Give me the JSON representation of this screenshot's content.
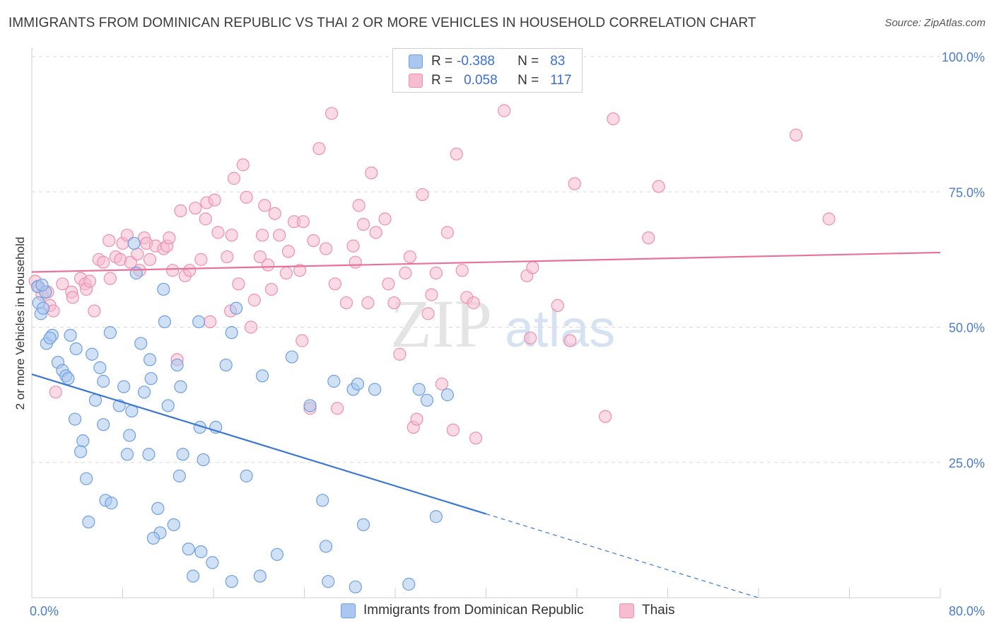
{
  "header": {
    "title": "IMMIGRANTS FROM DOMINICAN REPUBLIC VS THAI 2 OR MORE VEHICLES IN HOUSEHOLD CORRELATION CHART",
    "source": "Source: ZipAtlas.com"
  },
  "watermark": {
    "zip": "ZIP",
    "atlas": "atlas"
  },
  "legend": {
    "rows": [
      {
        "r_label": "R =",
        "r_value": "-0.388",
        "n_label": "N =",
        "n_value": "83"
      },
      {
        "r_label": "R =",
        "r_value": "0.058",
        "n_label": "N =",
        "n_value": "117"
      }
    ]
  },
  "colors": {
    "blue_fill": "#aac8ef",
    "blue_stroke": "#6f9fe0",
    "blue_line": "#3a78d4",
    "pink_fill": "#f6bcd0",
    "pink_stroke": "#ee8fb0",
    "pink_line": "#e8719c",
    "tick": "#4a7cc9",
    "grid": "#d9d9d9"
  },
  "chart_data": {
    "type": "scatter",
    "ylabel": "2 or more Vehicles in Household",
    "xlabel": "",
    "xlim": [
      0,
      80
    ],
    "ylim": [
      0,
      100
    ],
    "x_tick_labels": [
      {
        "value": 0,
        "label": "0.0%"
      },
      {
        "value": 80,
        "label": "80.0%"
      }
    ],
    "y_tick_labels": [
      {
        "value": 100,
        "label": "100.0%"
      },
      {
        "value": 75,
        "label": "75.0%"
      },
      {
        "value": 50,
        "label": "50.0%"
      },
      {
        "value": 25,
        "label": "25.0%"
      }
    ],
    "grid": true,
    "legend_position": "top-center",
    "series": [
      {
        "name": "Immigrants from Dominican Republic",
        "color": "#aac8ef",
        "trend": {
          "x": [
            0,
            40
          ],
          "y": [
            41.3,
            15.5
          ],
          "dashed_to": [
            64,
            0
          ]
        },
        "points": [
          [
            0.5,
            57.5
          ],
          [
            0.6,
            54.5
          ],
          [
            0.8,
            52.5
          ],
          [
            1.0,
            53.5
          ],
          [
            1.3,
            47
          ],
          [
            1.8,
            48.5
          ],
          [
            1.6,
            48
          ],
          [
            3.4,
            48.5
          ],
          [
            2.3,
            43.5
          ],
          [
            2.7,
            42
          ],
          [
            3.0,
            41
          ],
          [
            3.2,
            40.5
          ],
          [
            3.9,
            46
          ],
          [
            5.3,
            45
          ],
          [
            6.0,
            42.5
          ],
          [
            6.9,
            49
          ],
          [
            6.3,
            40
          ],
          [
            8.1,
            39
          ],
          [
            5.6,
            36.5
          ],
          [
            7.7,
            35.5
          ],
          [
            10.4,
            44
          ],
          [
            9.6,
            47
          ],
          [
            10.5,
            40.5
          ],
          [
            11.7,
            51
          ],
          [
            11.6,
            57
          ],
          [
            9.2,
            60
          ],
          [
            9.0,
            65.5
          ],
          [
            8.8,
            34.5
          ],
          [
            9.9,
            38
          ],
          [
            12.0,
            35.5
          ],
          [
            12.8,
            43
          ],
          [
            13.1,
            39
          ],
          [
            14.7,
            51
          ],
          [
            14.8,
            31.5
          ],
          [
            16.2,
            31.5
          ],
          [
            17.6,
            49
          ],
          [
            17.1,
            43
          ],
          [
            18.0,
            53.5
          ],
          [
            20.3,
            41
          ],
          [
            22.9,
            44.5
          ],
          [
            24.5,
            35.5
          ],
          [
            26.6,
            40
          ],
          [
            28.3,
            38.5
          ],
          [
            28.7,
            39.5
          ],
          [
            30.2,
            38.5
          ],
          [
            34.1,
            38.5
          ],
          [
            34.8,
            36.5
          ],
          [
            36.6,
            37.5
          ],
          [
            3.8,
            33
          ],
          [
            4.5,
            29
          ],
          [
            4.3,
            27
          ],
          [
            4.8,
            22
          ],
          [
            6.3,
            32
          ],
          [
            6.5,
            18
          ],
          [
            7.0,
            17.5
          ],
          [
            5.0,
            14
          ],
          [
            8.6,
            30
          ],
          [
            8.4,
            26.5
          ],
          [
            10.3,
            26.5
          ],
          [
            11.1,
            16.5
          ],
          [
            13.0,
            22.5
          ],
          [
            13.3,
            26.5
          ],
          [
            15.1,
            25.5
          ],
          [
            12.5,
            13.5
          ],
          [
            11.3,
            12
          ],
          [
            10.7,
            11
          ],
          [
            13.8,
            9
          ],
          [
            14.9,
            8.5
          ],
          [
            15.9,
            6.5
          ],
          [
            14.2,
            4
          ],
          [
            17.6,
            3
          ],
          [
            20.1,
            4
          ],
          [
            21.6,
            8
          ],
          [
            18.9,
            22.5
          ],
          [
            25.6,
            18
          ],
          [
            25.9,
            9.5
          ],
          [
            26.1,
            3
          ],
          [
            28.5,
            2
          ],
          [
            29.2,
            13.5
          ],
          [
            33.2,
            2.5
          ],
          [
            35.6,
            15
          ],
          [
            1.2,
            56.5
          ],
          [
            0.9,
            57.8
          ]
        ]
      },
      {
        "name": "Thais",
        "color": "#f6bcd0",
        "trend": {
          "x": [
            0,
            80
          ],
          "y": [
            60.2,
            63.8
          ]
        },
        "points": [
          [
            0.3,
            58.5
          ],
          [
            0.6,
            57.5
          ],
          [
            0.9,
            56
          ],
          [
            1.4,
            56.5
          ],
          [
            1.6,
            54
          ],
          [
            1.9,
            53
          ],
          [
            2.7,
            58
          ],
          [
            3.5,
            56.5
          ],
          [
            3.6,
            55.5
          ],
          [
            4.3,
            59
          ],
          [
            4.7,
            58
          ],
          [
            4.8,
            57
          ],
          [
            5.1,
            58.5
          ],
          [
            5.5,
            53
          ],
          [
            5.9,
            62.5
          ],
          [
            6.3,
            62
          ],
          [
            6.8,
            66
          ],
          [
            6.9,
            59
          ],
          [
            7.4,
            63
          ],
          [
            7.8,
            62.5
          ],
          [
            8.0,
            65.5
          ],
          [
            8.4,
            67
          ],
          [
            8.7,
            62
          ],
          [
            9.3,
            63.5
          ],
          [
            9.5,
            60.5
          ],
          [
            9.9,
            66.5
          ],
          [
            10.1,
            65.5
          ],
          [
            10.4,
            62.5
          ],
          [
            10.9,
            65
          ],
          [
            11.6,
            64.5
          ],
          [
            11.9,
            65
          ],
          [
            12.1,
            66.5
          ],
          [
            12.4,
            60.5
          ],
          [
            12.8,
            44
          ],
          [
            13.1,
            71.5
          ],
          [
            13.5,
            59.5
          ],
          [
            13.9,
            60.5
          ],
          [
            14.4,
            72
          ],
          [
            14.9,
            62.5
          ],
          [
            15.3,
            70
          ],
          [
            15.7,
            51
          ],
          [
            15.4,
            73
          ],
          [
            16.1,
            73.5
          ],
          [
            16.4,
            67.5
          ],
          [
            17.2,
            63
          ],
          [
            17.6,
            67
          ],
          [
            17.8,
            77.5
          ],
          [
            18.2,
            58
          ],
          [
            18.6,
            80
          ],
          [
            18.9,
            74
          ],
          [
            19.3,
            50
          ],
          [
            19.6,
            55
          ],
          [
            20.1,
            63
          ],
          [
            20.3,
            67
          ],
          [
            20.5,
            72.5
          ],
          [
            20.8,
            61.5
          ],
          [
            21.1,
            57
          ],
          [
            21.4,
            71
          ],
          [
            21.8,
            67
          ],
          [
            22.4,
            60
          ],
          [
            22.6,
            64
          ],
          [
            23.1,
            69.5
          ],
          [
            23.6,
            60.5
          ],
          [
            23.8,
            47.5
          ],
          [
            23.9,
            69.5
          ],
          [
            24.5,
            35
          ],
          [
            24.8,
            66
          ],
          [
            25.3,
            83
          ],
          [
            25.9,
            64.5
          ],
          [
            26.4,
            89.5
          ],
          [
            26.7,
            58
          ],
          [
            26.9,
            35
          ],
          [
            27.7,
            54.5
          ],
          [
            28.3,
            65
          ],
          [
            28.8,
            72.5
          ],
          [
            29.2,
            69
          ],
          [
            29.6,
            54.5
          ],
          [
            29.9,
            78.5
          ],
          [
            30.3,
            67.5
          ],
          [
            31.1,
            70
          ],
          [
            31.4,
            58
          ],
          [
            31.9,
            54.5
          ],
          [
            32.4,
            45
          ],
          [
            32.9,
            60
          ],
          [
            33.3,
            63
          ],
          [
            33.6,
            31.5
          ],
          [
            33.9,
            33
          ],
          [
            34.4,
            74.5
          ],
          [
            34.9,
            52.5
          ],
          [
            35.2,
            56
          ],
          [
            35.6,
            60
          ],
          [
            36.1,
            39.5
          ],
          [
            36.6,
            67.5
          ],
          [
            37.1,
            31
          ],
          [
            37.4,
            82
          ],
          [
            37.9,
            60.5
          ],
          [
            38.3,
            55.5
          ],
          [
            38.9,
            54.5
          ],
          [
            39.1,
            29.5
          ],
          [
            41.6,
            90
          ],
          [
            43.6,
            59.5
          ],
          [
            43.9,
            48
          ],
          [
            44.1,
            61
          ],
          [
            46.3,
            54
          ],
          [
            47.4,
            47.5
          ],
          [
            47.8,
            76.5
          ],
          [
            50.5,
            33.5
          ],
          [
            51.2,
            88.5
          ],
          [
            54.3,
            66.5
          ],
          [
            55.2,
            76
          ],
          [
            67.3,
            85.5
          ],
          [
            70.2,
            70
          ],
          [
            2.1,
            38
          ],
          [
            28.5,
            62
          ],
          [
            17.5,
            53
          ]
        ]
      }
    ]
  },
  "bottom_legend": {
    "items": [
      {
        "label": "Immigrants from Dominican Republic"
      },
      {
        "label": "Thais"
      }
    ]
  }
}
